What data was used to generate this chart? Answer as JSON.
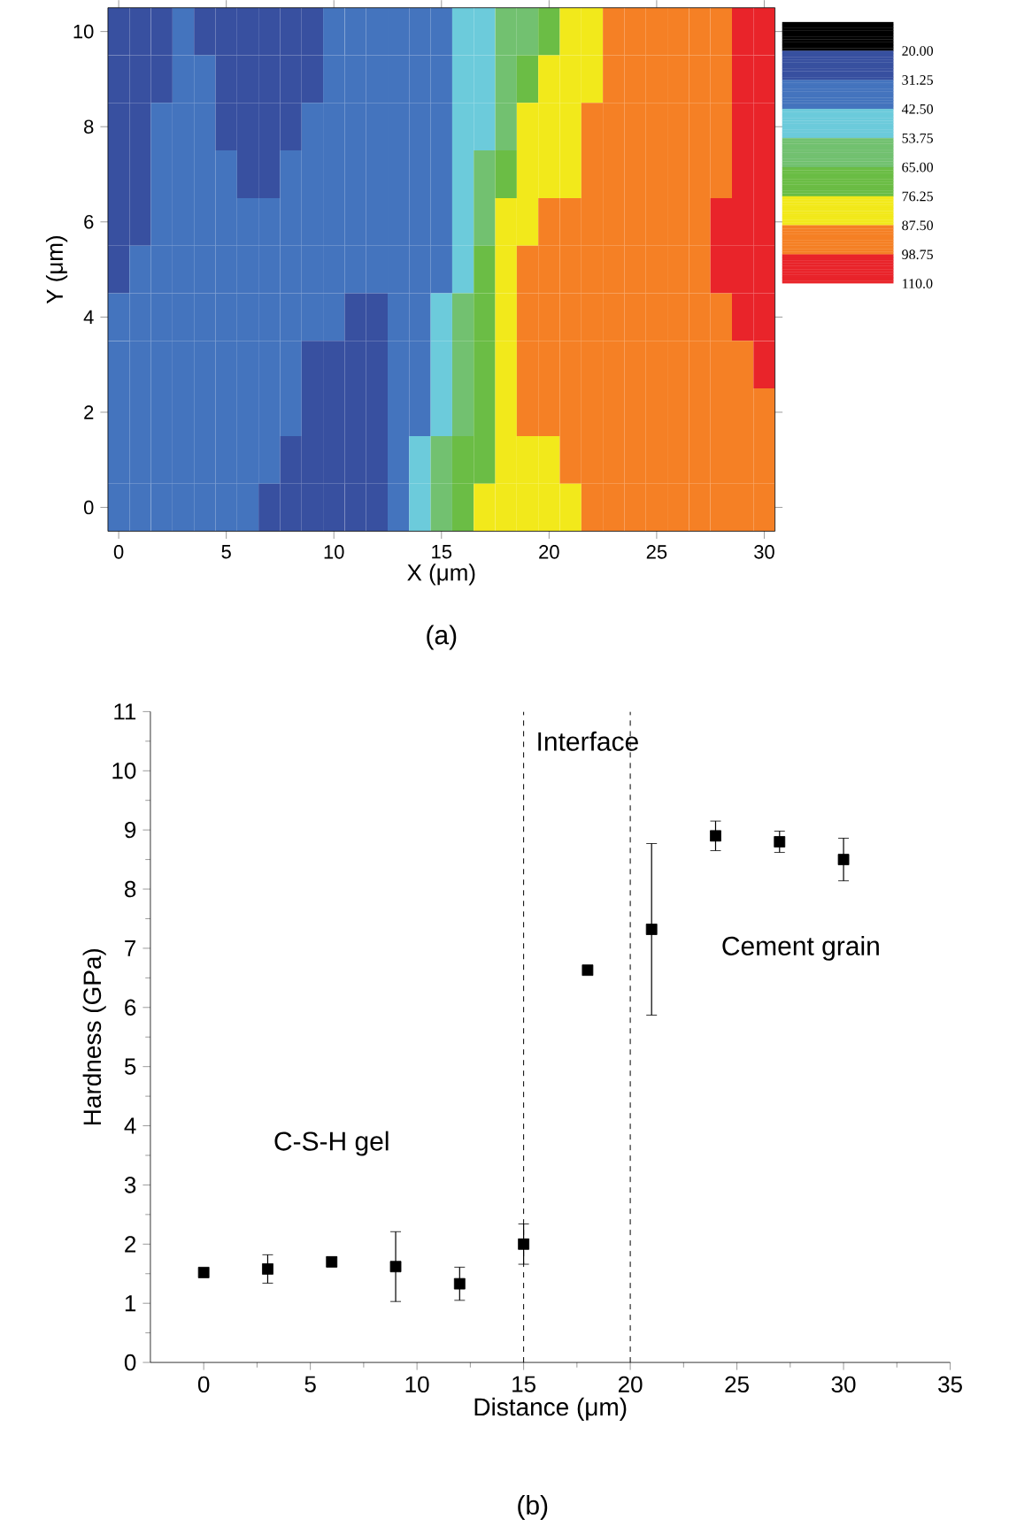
{
  "chart_data": [
    {
      "type": "heatmap",
      "title": "(a)",
      "xlabel": "X (μm)",
      "ylabel": "Y (μm)",
      "categories": [
        "0",
        null,
        null,
        null,
        null,
        "5",
        null,
        null,
        null,
        null,
        "10",
        null,
        null,
        null,
        null,
        "15",
        null,
        null,
        null,
        null,
        "20",
        null,
        null,
        null,
        null,
        "25",
        null,
        null,
        null,
        null,
        "30"
      ],
      "y_categories": [
        "10",
        null,
        "8",
        null,
        "6",
        null,
        "4",
        null,
        "2",
        null,
        "0"
      ],
      "cells": [
        [
          26,
          26,
          26,
          37,
          26,
          26,
          26,
          26,
          26,
          26,
          37,
          37,
          37,
          37,
          37,
          37,
          48,
          48,
          59,
          59,
          71,
          82,
          82,
          93,
          93,
          93,
          93,
          93,
          93,
          104,
          104
        ],
        [
          26,
          26,
          26,
          37,
          37,
          26,
          26,
          26,
          26,
          26,
          37,
          37,
          37,
          37,
          37,
          37,
          48,
          48,
          59,
          71,
          82,
          82,
          82,
          93,
          93,
          93,
          93,
          93,
          93,
          104,
          104
        ],
        [
          26,
          26,
          37,
          37,
          37,
          26,
          26,
          26,
          26,
          37,
          37,
          37,
          37,
          37,
          37,
          37,
          48,
          48,
          59,
          82,
          82,
          82,
          93,
          93,
          93,
          93,
          93,
          93,
          93,
          104,
          104
        ],
        [
          26,
          26,
          37,
          37,
          37,
          37,
          26,
          26,
          37,
          37,
          37,
          37,
          37,
          37,
          37,
          37,
          48,
          59,
          71,
          82,
          82,
          82,
          93,
          93,
          93,
          93,
          93,
          93,
          93,
          104,
          104
        ],
        [
          26,
          26,
          37,
          37,
          37,
          37,
          37,
          37,
          37,
          37,
          37,
          37,
          37,
          37,
          37,
          37,
          48,
          59,
          82,
          82,
          93,
          93,
          93,
          93,
          93,
          93,
          93,
          93,
          104,
          104,
          104
        ],
        [
          26,
          37,
          37,
          37,
          37,
          37,
          37,
          37,
          37,
          37,
          37,
          37,
          37,
          37,
          37,
          37,
          48,
          71,
          82,
          93,
          93,
          93,
          93,
          93,
          93,
          93,
          93,
          93,
          104,
          104,
          104
        ],
        [
          37,
          37,
          37,
          37,
          37,
          37,
          37,
          37,
          37,
          37,
          37,
          26,
          26,
          37,
          37,
          48,
          59,
          71,
          82,
          93,
          93,
          93,
          93,
          93,
          93,
          93,
          93,
          93,
          93,
          104,
          104
        ],
        [
          37,
          37,
          37,
          37,
          37,
          37,
          37,
          37,
          37,
          26,
          26,
          26,
          26,
          37,
          37,
          48,
          59,
          71,
          82,
          93,
          93,
          93,
          93,
          93,
          93,
          93,
          93,
          93,
          93,
          93,
          104
        ],
        [
          37,
          37,
          37,
          37,
          37,
          37,
          37,
          37,
          37,
          26,
          26,
          26,
          26,
          37,
          37,
          48,
          59,
          71,
          82,
          93,
          93,
          93,
          93,
          93,
          93,
          93,
          93,
          93,
          93,
          93,
          93
        ],
        [
          37,
          37,
          37,
          37,
          37,
          37,
          37,
          37,
          26,
          26,
          26,
          26,
          26,
          37,
          48,
          59,
          71,
          71,
          82,
          82,
          82,
          93,
          93,
          93,
          93,
          93,
          93,
          93,
          93,
          93,
          93
        ],
        [
          37,
          37,
          37,
          37,
          37,
          37,
          37,
          26,
          26,
          26,
          26,
          26,
          26,
          37,
          48,
          59,
          71,
          82,
          82,
          82,
          82,
          82,
          93,
          93,
          93,
          93,
          93,
          93,
          93,
          93,
          93
        ]
      ],
      "clim": [
        8.75,
        110
      ],
      "cticks": [
        {
          "value": 20,
          "label": "20.00"
        },
        {
          "value": 31.25,
          "label": "31.25"
        },
        {
          "value": 42.5,
          "label": "42.50"
        },
        {
          "value": 53.75,
          "label": "53.75"
        },
        {
          "value": 65,
          "label": "65.00"
        },
        {
          "value": 76.25,
          "label": "76.25"
        },
        {
          "value": 87.5,
          "label": "87.50"
        },
        {
          "value": 98.75,
          "label": "98.75"
        },
        {
          "value": 110,
          "label": "110.0"
        }
      ]
    },
    {
      "type": "scatter",
      "title": "(b)",
      "xlabel": "Distance (μm)",
      "ylabel": "Hardness (GPa)",
      "x": [
        0,
        3,
        6,
        9,
        12,
        15,
        18,
        21,
        24,
        27,
        30
      ],
      "values": [
        1.52,
        1.58,
        1.7,
        1.62,
        1.33,
        2.0,
        6.63,
        7.32,
        8.9,
        8.8,
        8.5
      ],
      "errors": [
        null,
        0.24,
        0.08,
        0.59,
        0.28,
        0.34,
        null,
        1.45,
        0.25,
        0.18,
        0.36
      ],
      "color": "#000000",
      "marker": "square",
      "xlim": [
        -2.5,
        35
      ],
      "xticks": [
        0,
        5,
        10,
        15,
        20,
        25,
        30,
        35
      ],
      "ylim": [
        0,
        11
      ],
      "yticks": [
        0,
        1,
        2,
        3,
        4,
        5,
        6,
        7,
        8,
        9,
        10,
        11
      ],
      "ref_lines": [
        {
          "axis": "x",
          "value": 15,
          "line_style": "dashed"
        },
        {
          "axis": "x",
          "value": 20,
          "line_style": "dashed"
        }
      ],
      "annotations": [
        "Interface",
        "Cement grain",
        "C-S-H gel"
      ]
    }
  ]
}
